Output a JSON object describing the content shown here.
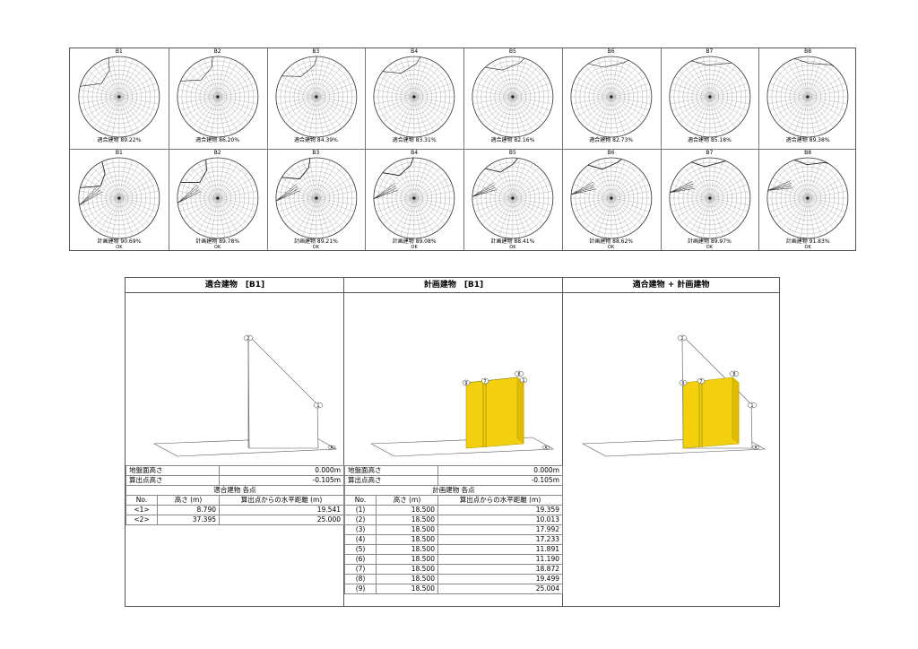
{
  "sky_charts": {
    "ids": [
      "B1",
      "B2",
      "B3",
      "B4",
      "B5",
      "B6",
      "B7",
      "B8"
    ],
    "top_row": {
      "label": "適合建物",
      "rates": [
        "89.22%",
        "86.20%",
        "84.39%",
        "83.31%",
        "82.16%",
        "82.73%",
        "85.18%",
        "89.38%"
      ]
    },
    "bottom_row": {
      "label": "計画建物",
      "rates": [
        "90.69%",
        "89.78%",
        "89.21%",
        "89.08%",
        "88.41%",
        "88.62%",
        "89.97%",
        "91.83%"
      ],
      "judgements": [
        "OK",
        "OK",
        "OK",
        "OK",
        "OK",
        "OK",
        "OK",
        "OK"
      ]
    }
  },
  "panels": {
    "left_title": "適合建物　[B1]",
    "middle_title": "計画建物　[B1]",
    "right_title": "適合建物 + 計画建物"
  },
  "view_labels": {
    "p1": "1",
    "p2": "2",
    "p7": "7",
    "p8": "8",
    "p9": "9"
  },
  "left_table": {
    "ground_label": "地盤面高さ",
    "ground_value": "0.000m",
    "calc_label": "算出点高さ",
    "calc_value": "-0.105m",
    "section_title": "適合建物 各点",
    "headers": [
      "No.",
      "高さ (m)",
      "算出点からの水平距離 (m)"
    ],
    "rows": [
      {
        "no": "<1>",
        "h": "8.790",
        "d": "19.541"
      },
      {
        "no": "<2>",
        "h": "37.395",
        "d": "25.000"
      }
    ]
  },
  "middle_table": {
    "ground_label": "地盤面高さ",
    "ground_value": "0.000m",
    "calc_label": "算出点高さ",
    "calc_value": "-0.105m",
    "section_title": "計画建物 各点",
    "headers": [
      "No.",
      "高さ (m)",
      "算出点からの水平距離 (m)"
    ],
    "rows": [
      {
        "no": "(1)",
        "h": "18.500",
        "d": "19.359"
      },
      {
        "no": "(2)",
        "h": "18.500",
        "d": "10.013"
      },
      {
        "no": "(3)",
        "h": "18.500",
        "d": "17.992"
      },
      {
        "no": "(4)",
        "h": "18.500",
        "d": "17.233"
      },
      {
        "no": "(5)",
        "h": "18.500",
        "d": "11.891"
      },
      {
        "no": "(6)",
        "h": "18.500",
        "d": "11.190"
      },
      {
        "no": "(7)",
        "h": "18.500",
        "d": "18.872"
      },
      {
        "no": "(8)",
        "h": "18.500",
        "d": "19.499"
      },
      {
        "no": "(9)",
        "h": "18.500",
        "d": "25.004"
      }
    ]
  },
  "colors": {
    "building_fill": "#f2d010",
    "building_edge": "#b49a00",
    "line": "#555555"
  }
}
